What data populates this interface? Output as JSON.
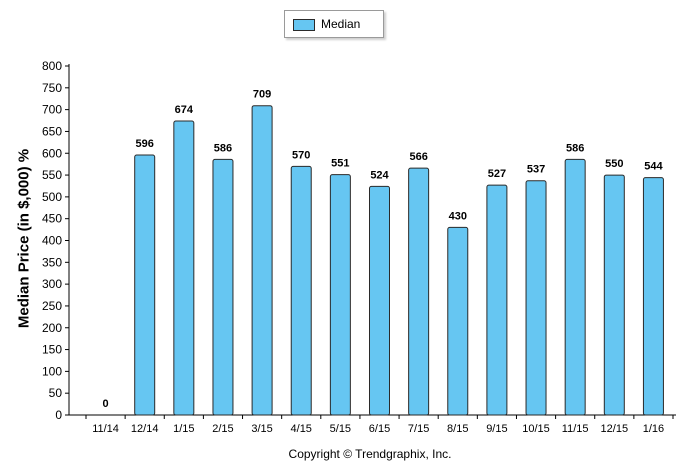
{
  "chart_data": {
    "type": "bar",
    "ylabel": "Median Price (in $,000) %",
    "categories": [
      "11/14",
      "12/14",
      "1/15",
      "2/15",
      "3/15",
      "4/15",
      "5/15",
      "6/15",
      "7/15",
      "8/15",
      "9/15",
      "10/15",
      "11/15",
      "12/15",
      "1/16"
    ],
    "series": [
      {
        "name": "Median",
        "values": [
          0,
          596,
          674,
          586,
          709,
          570,
          551,
          524,
          566,
          430,
          527,
          537,
          586,
          550,
          544
        ]
      }
    ],
    "ylim": [
      0,
      800
    ],
    "yticks": [
      0,
      50,
      100,
      150,
      200,
      250,
      300,
      350,
      400,
      450,
      500,
      550,
      600,
      650,
      700,
      750,
      800
    ],
    "legend_position": "top-center",
    "grid": false,
    "bar_color": "#66c6f2",
    "bar_edge_color": "#2a2a2a",
    "data_labels": [
      "0",
      "596",
      "674",
      "586",
      "709",
      "570",
      "551",
      "524",
      "566",
      "430",
      "527",
      "537",
      "586",
      "550",
      "544"
    ]
  },
  "footer": {
    "copyright": "Copyright © Trendgraphix, Inc."
  }
}
